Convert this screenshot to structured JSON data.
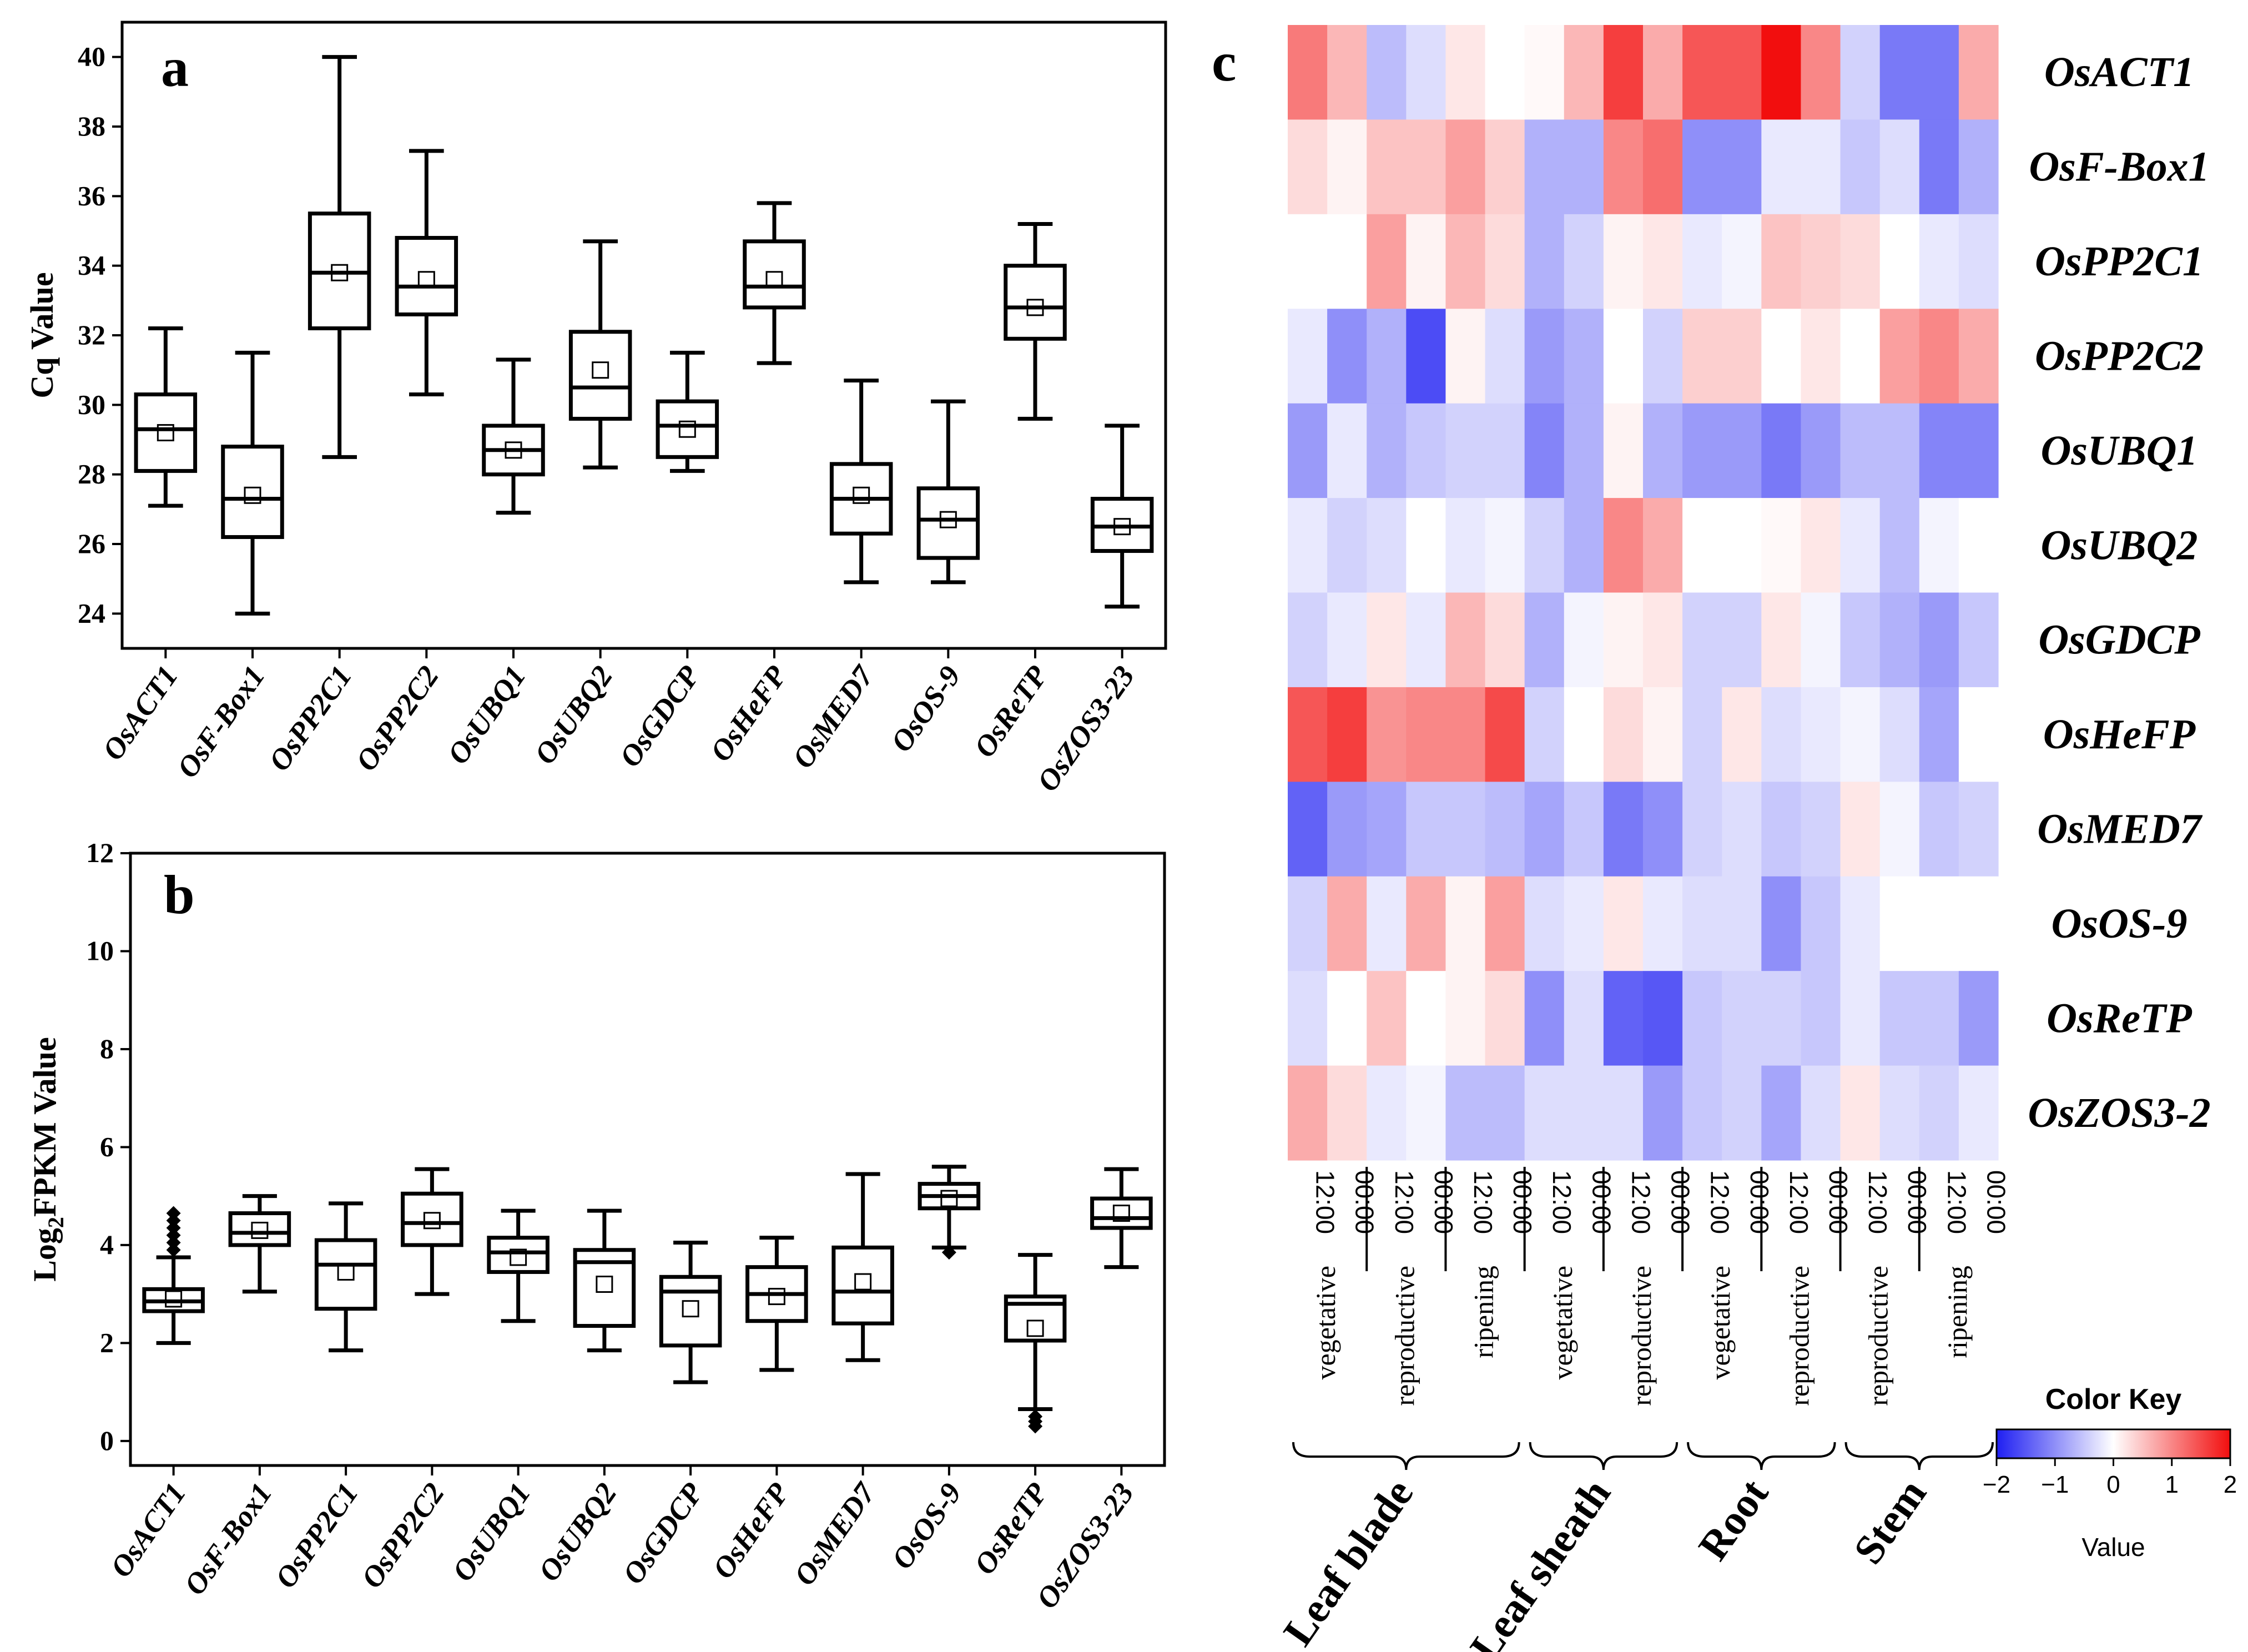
{
  "chart_data": [
    {
      "id": "a",
      "type": "box",
      "panel_label": "a",
      "ylabel": "Cq Value",
      "ylim": [
        23,
        41
      ],
      "yticks": [
        24,
        26,
        28,
        30,
        32,
        34,
        36,
        38,
        40
      ],
      "categories": [
        "OsACT1",
        "OsF-Box1",
        "OsPP2C1",
        "OsPP2C2",
        "OsUBQ1",
        "OsUBQ2",
        "OsGDCP",
        "OsHeFP",
        "OsMED7",
        "OsOS-9",
        "OsReTP",
        "OsZOS3-23"
      ],
      "boxes": [
        {
          "min": 27.1,
          "q1": 28.1,
          "median": 29.3,
          "q3": 30.3,
          "max": 32.2,
          "mean": 29.2,
          "outliers": []
        },
        {
          "min": 24.0,
          "q1": 26.2,
          "median": 27.3,
          "q3": 28.8,
          "max": 31.5,
          "mean": 27.4,
          "outliers": []
        },
        {
          "min": 28.5,
          "q1": 32.2,
          "median": 33.8,
          "q3": 35.5,
          "max": 40.0,
          "mean": 33.8,
          "outliers": []
        },
        {
          "min": 30.3,
          "q1": 32.6,
          "median": 33.4,
          "q3": 34.8,
          "max": 37.3,
          "mean": 33.6,
          "outliers": []
        },
        {
          "min": 26.9,
          "q1": 28.0,
          "median": 28.7,
          "q3": 29.4,
          "max": 31.3,
          "mean": 28.7,
          "outliers": []
        },
        {
          "min": 28.2,
          "q1": 29.6,
          "median": 30.5,
          "q3": 32.1,
          "max": 34.7,
          "mean": 31.0,
          "outliers": []
        },
        {
          "min": 28.1,
          "q1": 28.5,
          "median": 29.4,
          "q3": 30.1,
          "max": 31.5,
          "mean": 29.3,
          "outliers": []
        },
        {
          "min": 31.2,
          "q1": 32.8,
          "median": 33.4,
          "q3": 34.7,
          "max": 35.8,
          "mean": 33.6,
          "outliers": []
        },
        {
          "min": 24.9,
          "q1": 26.3,
          "median": 27.3,
          "q3": 28.3,
          "max": 30.7,
          "mean": 27.4,
          "outliers": []
        },
        {
          "min": 24.9,
          "q1": 25.6,
          "median": 26.7,
          "q3": 27.6,
          "max": 30.1,
          "mean": 26.7,
          "outliers": []
        },
        {
          "min": 29.6,
          "q1": 31.9,
          "median": 32.8,
          "q3": 34.0,
          "max": 35.2,
          "mean": 32.8,
          "outliers": []
        },
        {
          "min": 24.2,
          "q1": 25.8,
          "median": 26.5,
          "q3": 27.3,
          "max": 29.4,
          "mean": 26.5,
          "outliers": []
        }
      ]
    },
    {
      "id": "b",
      "type": "box",
      "panel_label": "b",
      "ylabel_main": "Log",
      "ylabel_sub": "2",
      "ylabel_rest": "FPKM Value",
      "ylim": [
        -0.5,
        12
      ],
      "yticks": [
        0,
        2,
        4,
        6,
        8,
        10,
        12
      ],
      "categories": [
        "OsACT1",
        "OsF-Box1",
        "OsPP2C1",
        "OsPP2C2",
        "OsUBQ1",
        "OsUBQ2",
        "OsGDCP",
        "OsHeFP",
        "OsMED7",
        "OsOS-9",
        "OsReTP",
        "OsZOS3-23"
      ],
      "boxes": [
        {
          "min": 2.0,
          "q1": 2.65,
          "median": 2.85,
          "q3": 3.1,
          "max": 3.75,
          "mean": 2.9,
          "outliers": [
            3.9,
            4.05,
            4.2,
            4.35,
            4.5,
            4.65
          ]
        },
        {
          "min": 3.05,
          "q1": 4.0,
          "median": 4.25,
          "q3": 4.65,
          "max": 5.0,
          "mean": 4.3,
          "outliers": []
        },
        {
          "min": 1.85,
          "q1": 2.7,
          "median": 3.6,
          "q3": 4.1,
          "max": 4.85,
          "mean": 3.45,
          "outliers": []
        },
        {
          "min": 3.0,
          "q1": 4.0,
          "median": 4.45,
          "q3": 5.05,
          "max": 5.55,
          "mean": 4.5,
          "outliers": []
        },
        {
          "min": 2.45,
          "q1": 3.45,
          "median": 3.85,
          "q3": 4.15,
          "max": 4.7,
          "mean": 3.75,
          "outliers": []
        },
        {
          "min": 1.85,
          "q1": 2.35,
          "median": 3.65,
          "q3": 3.9,
          "max": 4.7,
          "mean": 3.2,
          "outliers": []
        },
        {
          "min": 1.2,
          "q1": 1.95,
          "median": 3.05,
          "q3": 3.35,
          "max": 4.05,
          "mean": 2.7,
          "outliers": []
        },
        {
          "min": 1.45,
          "q1": 2.45,
          "median": 3.0,
          "q3": 3.55,
          "max": 4.15,
          "mean": 2.95,
          "outliers": []
        },
        {
          "min": 1.65,
          "q1": 2.4,
          "median": 3.05,
          "q3": 3.95,
          "max": 5.45,
          "mean": 3.25,
          "outliers": []
        },
        {
          "min": 3.95,
          "q1": 4.75,
          "median": 5.0,
          "q3": 5.25,
          "max": 5.6,
          "mean": 4.95,
          "outliers": [
            3.85
          ]
        },
        {
          "min": 0.65,
          "q1": 2.05,
          "median": 2.8,
          "q3": 2.95,
          "max": 3.8,
          "mean": 2.3,
          "outliers": [
            0.3,
            0.4,
            0.5
          ]
        },
        {
          "min": 3.55,
          "q1": 4.35,
          "median": 4.55,
          "q3": 4.95,
          "max": 5.55,
          "mean": 4.65,
          "outliers": []
        }
      ]
    },
    {
      "id": "c",
      "type": "heatmap",
      "panel_label": "c",
      "rows": [
        "OsACT1",
        "OsF-Box1",
        "OsPP2C1",
        "OsPP2C2",
        "OsUBQ1",
        "OsUBQ2",
        "OsGDCP",
        "OsHeFP",
        "OsMED7",
        "OsOS-9",
        "OsReTP",
        "OsZOS3-2"
      ],
      "columns": [
        "12:00",
        "00:00",
        "12:00",
        "00:00",
        "12:00",
        "00:00",
        "12:00",
        "00:00",
        "12:00",
        "00:00",
        "12:00",
        "00:00",
        "12:00",
        "00:00",
        "12:00",
        "00:00",
        "12:00",
        "00:00"
      ],
      "stage_labels": [
        {
          "label": "vegetative",
          "cols": [
            0,
            1
          ]
        },
        {
          "label": "reproductive",
          "cols": [
            2,
            3
          ]
        },
        {
          "label": "ripening",
          "cols": [
            4,
            5
          ]
        },
        {
          "label": "vegetative",
          "cols": [
            6,
            7
          ]
        },
        {
          "label": "reproductive",
          "cols": [
            8,
            9
          ]
        },
        {
          "label": "vegetative",
          "cols": [
            10,
            11
          ]
        },
        {
          "label": "reproductive",
          "cols": [
            12,
            13
          ]
        },
        {
          "label": "reproductive",
          "cols": [
            14,
            15
          ]
        },
        {
          "label": "ripening",
          "cols": [
            16,
            17
          ]
        }
      ],
      "tissue_labels": [
        {
          "label": "Leaf blade",
          "cols": [
            0,
            5
          ]
        },
        {
          "label": "Leaf sheath",
          "cols": [
            6,
            9
          ]
        },
        {
          "label": "Root",
          "cols": [
            10,
            13
          ]
        },
        {
          "label": "Stem",
          "cols": [
            14,
            17
          ]
        }
      ],
      "values": [
        [
          1.1,
          0.6,
          -0.6,
          -0.3,
          0.2,
          0.0,
          0.05,
          0.6,
          1.6,
          0.7,
          1.4,
          1.4,
          2.0,
          1.0,
          -0.4,
          -1.2,
          -1.2,
          0.7
        ],
        [
          0.3,
          0.1,
          0.5,
          0.5,
          0.8,
          0.4,
          -0.7,
          -0.7,
          1.0,
          1.2,
          -1.0,
          -1.0,
          -0.2,
          -0.2,
          -0.5,
          -0.3,
          -1.2,
          -0.7
        ],
        [
          0.0,
          0.0,
          0.8,
          0.1,
          0.6,
          0.3,
          -0.7,
          -0.4,
          0.1,
          0.2,
          -0.2,
          -0.1,
          0.5,
          0.4,
          0.3,
          0.0,
          -0.2,
          -0.3
        ],
        [
          -0.2,
          -1.0,
          -0.7,
          -1.6,
          0.1,
          -0.3,
          -0.9,
          -0.7,
          0.0,
          -0.4,
          0.4,
          0.4,
          0.0,
          0.2,
          0.0,
          0.8,
          1.0,
          0.7
        ],
        [
          -0.9,
          -0.2,
          -0.7,
          -0.5,
          -0.4,
          -0.4,
          -1.1,
          -0.7,
          0.1,
          -0.7,
          -0.9,
          -0.9,
          -1.2,
          -0.9,
          -0.6,
          -0.6,
          -1.1,
          -1.1
        ],
        [
          -0.2,
          -0.4,
          -0.3,
          0.0,
          -0.2,
          -0.1,
          -0.4,
          -0.7,
          1.0,
          0.7,
          0.0,
          0.0,
          0.05,
          0.2,
          -0.2,
          -0.6,
          -0.1,
          0.0
        ],
        [
          -0.4,
          -0.2,
          0.2,
          -0.2,
          0.6,
          0.3,
          -0.7,
          -0.1,
          0.1,
          0.2,
          -0.4,
          -0.4,
          0.2,
          -0.1,
          -0.5,
          -0.7,
          -0.9,
          -0.5
        ],
        [
          1.4,
          1.6,
          0.9,
          1.0,
          1.0,
          1.5,
          -0.4,
          0.0,
          0.3,
          0.1,
          -0.4,
          0.2,
          -0.3,
          -0.2,
          -0.1,
          -0.3,
          -0.8,
          0.0
        ],
        [
          -1.4,
          -0.9,
          -0.8,
          -0.5,
          -0.5,
          -0.6,
          -0.8,
          -0.5,
          -1.2,
          -1.0,
          -0.4,
          -0.3,
          -0.5,
          -0.4,
          0.2,
          -0.1,
          -0.5,
          -0.4
        ],
        [
          -0.4,
          0.7,
          -0.2,
          0.7,
          0.1,
          0.8,
          -0.3,
          -0.2,
          0.2,
          -0.2,
          -0.3,
          -0.3,
          -1.0,
          -0.5,
          -0.2,
          0.0,
          0.0,
          0.0
        ],
        [
          -0.3,
          0.0,
          0.5,
          0.0,
          0.1,
          0.3,
          -1.0,
          -0.3,
          -1.4,
          -1.5,
          -0.5,
          -0.4,
          -0.4,
          -0.5,
          -0.2,
          -0.5,
          -0.5,
          -0.9
        ],
        [
          0.7,
          0.3,
          -0.2,
          -0.1,
          -0.6,
          -0.6,
          -0.3,
          -0.3,
          -0.3,
          -0.9,
          -0.5,
          -0.4,
          -0.8,
          -0.3,
          0.2,
          -0.3,
          -0.4,
          -0.2
        ]
      ],
      "color_key": {
        "title": "Color Key",
        "xlabel": "Value",
        "range": [
          -2,
          2
        ],
        "ticks": [
          "−2",
          "−1",
          "0",
          "1",
          "2"
        ],
        "low_color": "#1f1ff2",
        "mid_color": "#ffffff",
        "high_color": "#f20e0e"
      }
    }
  ]
}
